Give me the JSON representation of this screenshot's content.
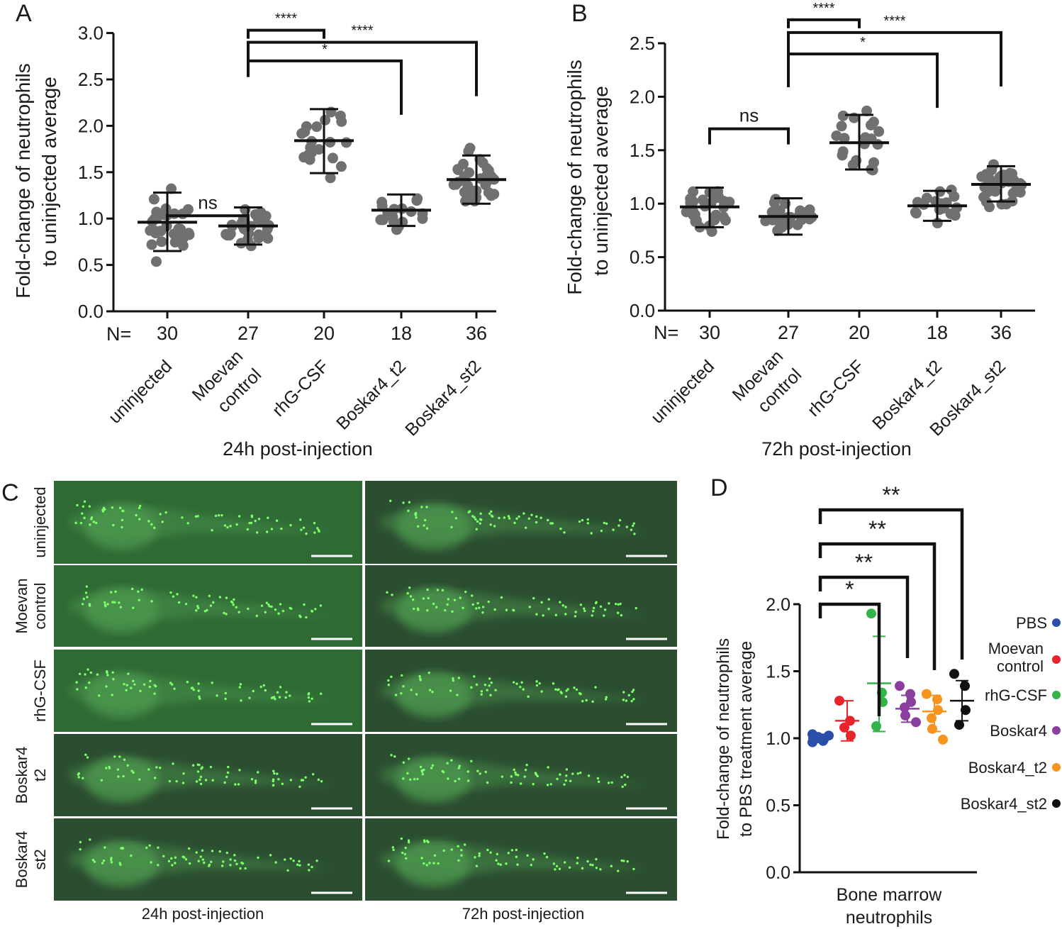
{
  "panels": {
    "A": "A",
    "B": "B",
    "C": "C",
    "D": "D"
  },
  "colors": {
    "dot_grey": "#707070",
    "axis": "#111111",
    "fish_bg": "#2f6a35",
    "fish_bg_dark": "#2b4d30",
    "fish_body": "#4e9a4f",
    "fish_dot": "#7dff6a",
    "panel_border": "#ffffff"
  },
  "chart_data": [
    {
      "panel": "A",
      "type": "scatter",
      "title": "",
      "xlabel": "24h post-injection",
      "ylabel_line1": "Fold-change of neutrophils",
      "ylabel_line2": "to uninjected average",
      "ylim": [
        0.0,
        3.0
      ],
      "yticks": [
        "0.0",
        "0.5",
        "1.0",
        "1.5",
        "2.0",
        "2.5",
        "3.0"
      ],
      "n_label": "N=",
      "grid": false,
      "groups": [
        {
          "label_line1": "uninjected",
          "label_line2": "",
          "n": "30",
          "mean": 0.96,
          "sd_low": 0.65,
          "sd_high": 1.28
        },
        {
          "label_line1": "Moevan",
          "label_line2": "control",
          "n": "27",
          "mean": 0.92,
          "sd_low": 0.72,
          "sd_high": 1.12
        },
        {
          "label_line1": "rhG-CSF",
          "label_line2": "",
          "n": "20",
          "mean": 1.84,
          "sd_low": 1.49,
          "sd_high": 2.18
        },
        {
          "label_line1": "Boskar4_t2",
          "label_line2": "",
          "n": "18",
          "mean": 1.09,
          "sd_low": 0.92,
          "sd_high": 1.26
        },
        {
          "label_line1": "Boskar4_st2",
          "label_line2": "",
          "n": "36",
          "mean": 1.42,
          "sd_low": 1.16,
          "sd_high": 1.68
        }
      ],
      "significance": [
        {
          "from": 0,
          "to": 1,
          "label": "ns",
          "level": 1.03
        },
        {
          "from": 1,
          "to": 2,
          "label": "****",
          "level": 3.03
        },
        {
          "from": 1,
          "to": 4,
          "label": "****",
          "level": 2.9
        },
        {
          "from": 1,
          "to": 3,
          "label": "*",
          "level": 2.7
        }
      ]
    },
    {
      "panel": "B",
      "type": "scatter",
      "title": "",
      "xlabel": "72h post-injection",
      "ylabel_line1": "Fold-change of neutrophils",
      "ylabel_line2": "to uninjected average",
      "ylim": [
        0.0,
        2.5
      ],
      "yticks": [
        "0.0",
        "0.5",
        "1.0",
        "1.5",
        "2.0",
        "2.5"
      ],
      "n_label": "N=",
      "grid": false,
      "groups": [
        {
          "label_line1": "uninjected",
          "label_line2": "",
          "n": "30",
          "mean": 0.97,
          "sd_low": 0.78,
          "sd_high": 1.15
        },
        {
          "label_line1": "Moevan",
          "label_line2": "control",
          "n": "27",
          "mean": 0.88,
          "sd_low": 0.71,
          "sd_high": 1.05
        },
        {
          "label_line1": "rhG-CSF",
          "label_line2": "",
          "n": "20",
          "mean": 1.57,
          "sd_low": 1.32,
          "sd_high": 1.83
        },
        {
          "label_line1": "Boskar4_t2",
          "label_line2": "",
          "n": "18",
          "mean": 0.98,
          "sd_low": 0.84,
          "sd_high": 1.12
        },
        {
          "label_line1": "Boskar4_st2",
          "label_line2": "",
          "n": "36",
          "mean": 1.18,
          "sd_low": 1.02,
          "sd_high": 1.35
        }
      ],
      "significance": [
        {
          "from": 0,
          "to": 1,
          "label": "ns",
          "level": 1.7
        },
        {
          "from": 1,
          "to": 2,
          "label": "****",
          "level": 2.72
        },
        {
          "from": 1,
          "to": 4,
          "label": "****",
          "level": 2.6
        },
        {
          "from": 1,
          "to": 3,
          "label": "*",
          "level": 2.4
        }
      ]
    },
    {
      "panel": "D",
      "type": "scatter",
      "title": "",
      "xlabel_line1": "Bone marrow",
      "xlabel_line2": "neutrophils",
      "ylabel_line1": "Fold-change of neutrophils",
      "ylabel_line2": "to PBS treatment average",
      "ylim": [
        0.0,
        2.0
      ],
      "yticks": [
        "0.0",
        "0.5",
        "1.0",
        "1.5",
        "2.0"
      ],
      "grid": false,
      "legend_position": "right",
      "series": [
        {
          "name": "PBS",
          "color": "#2b4fa8",
          "mean": 1.0,
          "sd_low": 0.97,
          "sd_high": 1.03,
          "points": [
            0.97,
            0.98,
            0.99,
            1.0,
            1.01,
            1.02,
            1.03
          ]
        },
        {
          "name_line1": "Moevan",
          "name_line2": "control",
          "color": "#e8242b",
          "mean": 1.13,
          "sd_low": 0.98,
          "sd_high": 1.28,
          "points": [
            1.28,
            1.13,
            1.02,
            1.08
          ]
        },
        {
          "name": "rhG-CSF",
          "color": "#32b44a",
          "mean": 1.41,
          "sd_low": 1.05,
          "sd_high": 1.76,
          "points": [
            1.93,
            1.34,
            1.27,
            1.09
          ]
        },
        {
          "name": "Boskar4",
          "color": "#8a3f9e",
          "mean": 1.22,
          "sd_low": 1.12,
          "sd_high": 1.32,
          "points": [
            1.39,
            1.33,
            1.27,
            1.23,
            1.17,
            1.12
          ]
        },
        {
          "name": "Boskar4_t2",
          "color": "#f7941d",
          "mean": 1.2,
          "sd_low": 1.05,
          "sd_high": 1.32,
          "points": [
            1.33,
            1.29,
            1.21,
            1.15,
            1.07,
            0.99
          ]
        },
        {
          "name": "Boskar4_st2",
          "color": "#111111",
          "mean": 1.28,
          "sd_low": 1.13,
          "sd_high": 1.43,
          "points": [
            1.48,
            1.39,
            1.21,
            1.1
          ]
        }
      ],
      "significance": [
        {
          "from": 0,
          "to": 2,
          "label": "*",
          "level": 2.1
        },
        {
          "from": 0,
          "to": 3,
          "label": "**",
          "level": 2.28
        },
        {
          "from": 0,
          "to": 4,
          "label": "**",
          "level": 2.47
        },
        {
          "from": 0,
          "to": 5,
          "label": "**",
          "level": 2.66
        }
      ]
    }
  ],
  "images": {
    "panel": "C",
    "rows": [
      {
        "label_line1": "uninjected",
        "label_line2": ""
      },
      {
        "label_line1": "Moevan",
        "label_line2": "control"
      },
      {
        "label_line1": "rhG-CSF",
        "label_line2": ""
      },
      {
        "label_line1": "Boskar4",
        "label_line2": "t2"
      },
      {
        "label_line1": "Boskar4",
        "label_line2": "st2"
      }
    ],
    "columns": [
      "24h post-injection",
      "72h post-injection"
    ]
  }
}
